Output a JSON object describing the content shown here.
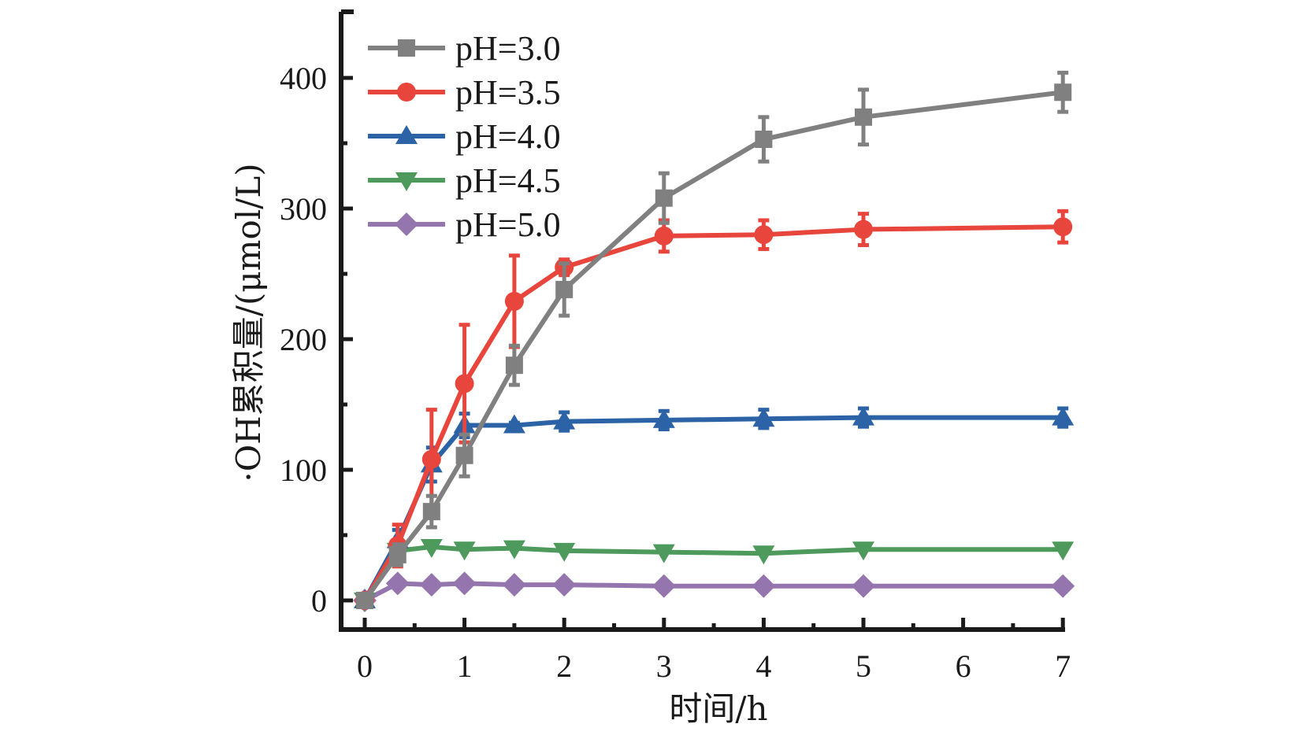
{
  "chart_data": {
    "type": "line",
    "title": "",
    "xlabel": "时间/h",
    "ylabel": "·OH累积量/(μmol/L)",
    "xlim": [
      -0.2,
      7.0
    ],
    "ylim": [
      -23,
      450
    ],
    "xticks": [
      0,
      1,
      2,
      3,
      4,
      5,
      6,
      7
    ],
    "xtick_labels": [
      "0",
      "1",
      "2",
      "3",
      "4",
      "5",
      "6",
      "7"
    ],
    "x_minor_step": 0.5,
    "yticks": [
      0,
      100,
      200,
      300,
      400
    ],
    "ytick_labels": [
      "0",
      "100",
      "200",
      "300",
      "400"
    ],
    "y_minor_step": 50,
    "grid": false,
    "legend_position": "top-left",
    "x": [
      0,
      0.33,
      0.67,
      1,
      1.5,
      2,
      3,
      4,
      5,
      7
    ],
    "series": [
      {
        "name": "pH=3.0",
        "color": "#808080",
        "marker": "square",
        "values": [
          0,
          35,
          68,
          111,
          180,
          238,
          308,
          353,
          370,
          389
        ],
        "errors": [
          0,
          8,
          12,
          16,
          15,
          20,
          19,
          17,
          21,
          15
        ]
      },
      {
        "name": "pH=3.5",
        "color": "#E8453C",
        "marker": "circle",
        "values": [
          0,
          42,
          108,
          166,
          229,
          255,
          279,
          280,
          284,
          286
        ],
        "errors": [
          2,
          16,
          38,
          45,
          35,
          6,
          12,
          11,
          12,
          12
        ]
      },
      {
        "name": "pH=4.0",
        "color": "#2B63A6",
        "marker": "triangle-up",
        "values": [
          0,
          46,
          104,
          134,
          134,
          137,
          138,
          139,
          140,
          140
        ],
        "errors": [
          0,
          8,
          13,
          9,
          2,
          7,
          7,
          7,
          7,
          7
        ]
      },
      {
        "name": "pH=4.5",
        "color": "#4E9A5C",
        "marker": "triangle-down",
        "values": [
          0,
          38,
          41,
          39,
          40,
          38,
          37,
          36,
          39,
          39
        ],
        "errors": [
          0,
          0,
          0,
          0,
          0,
          0,
          0,
          0,
          0,
          0
        ]
      },
      {
        "name": "pH=5.0",
        "color": "#9575AE",
        "marker": "diamond",
        "values": [
          0,
          13,
          12,
          13,
          12,
          12,
          11,
          11,
          11,
          11
        ],
        "errors": [
          0,
          0,
          0,
          0,
          0,
          0,
          0,
          0,
          0,
          0
        ]
      }
    ]
  }
}
